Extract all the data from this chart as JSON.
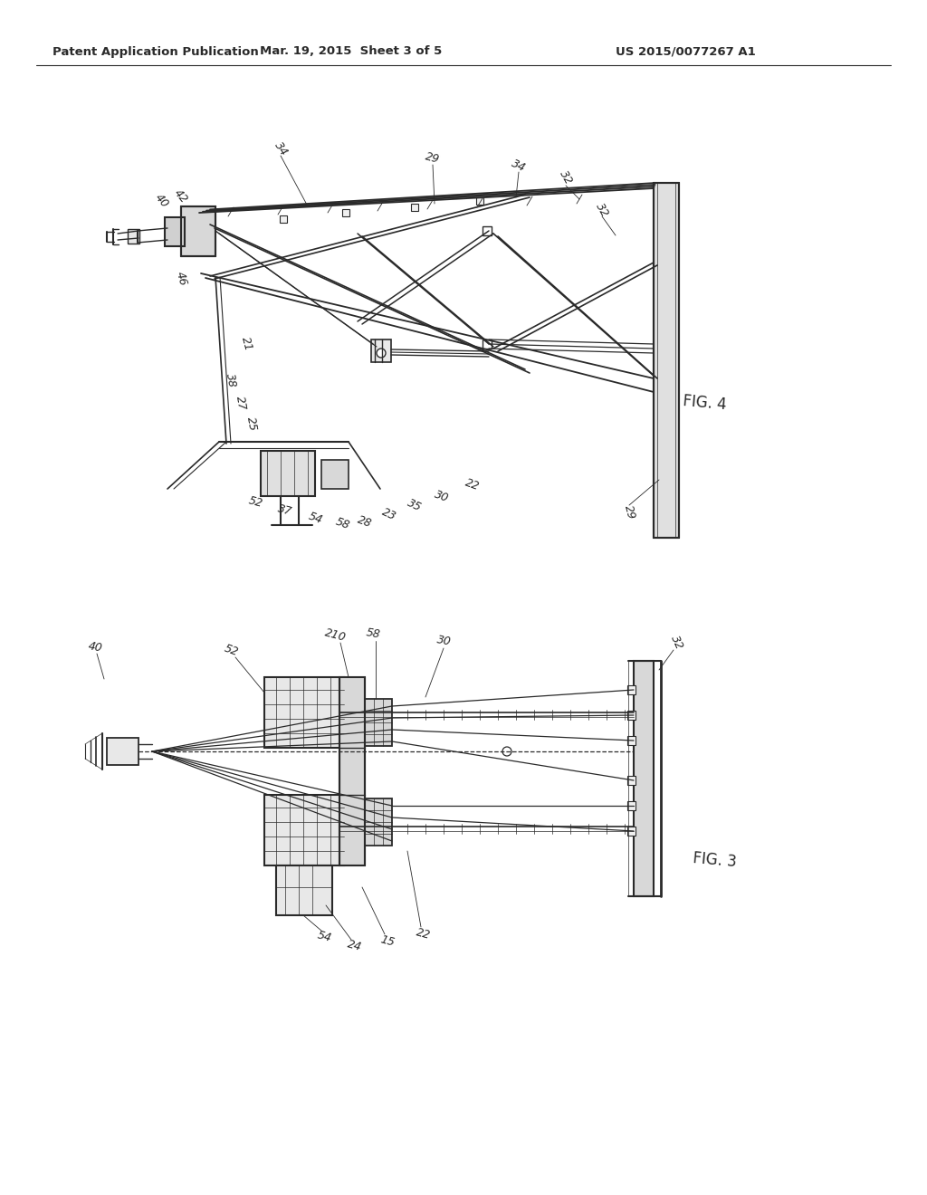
{
  "background_color": "#ffffff",
  "header_left": "Patent Application Publication",
  "header_center": "Mar. 19, 2015  Sheet 3 of 5",
  "header_right": "US 2015/0077267 A1",
  "fig4_label": "FIG. 4",
  "fig3_label": "FIG. 3",
  "header_fontsize": 9.5,
  "fig_label_fontsize": 12,
  "ref_fontsize": 9,
  "line_color": "#2a2a2a"
}
